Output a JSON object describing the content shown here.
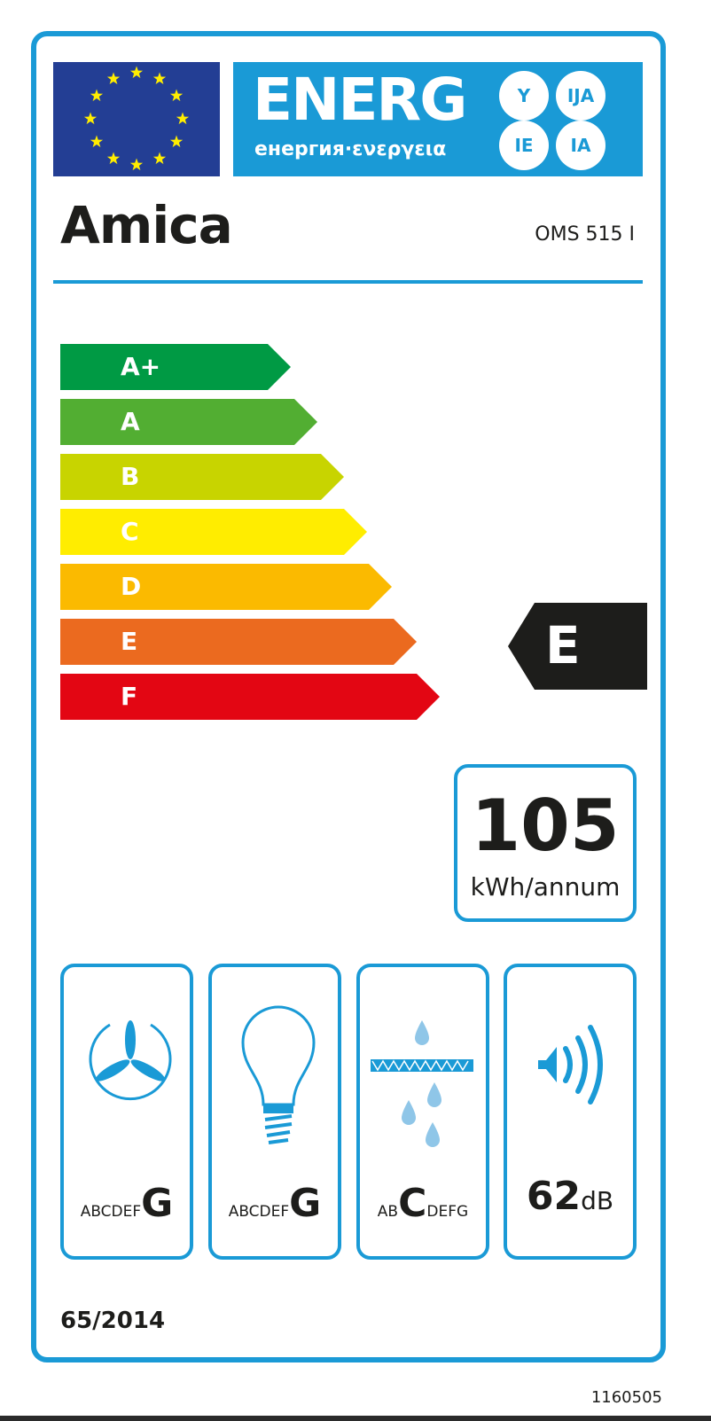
{
  "header": {
    "energy_word": "ENERG",
    "subtitle": "енергия·ενεργεια",
    "suffixes": [
      "Y",
      "IJA",
      "IE",
      "IA"
    ]
  },
  "brand": "Amica",
  "model": "OMS 515 I",
  "scale": {
    "classes": [
      {
        "label": "A+",
        "color": "#009a44"
      },
      {
        "label": "A",
        "color": "#52ae32"
      },
      {
        "label": "B",
        "color": "#c8d400"
      },
      {
        "label": "C",
        "color": "#ffed00"
      },
      {
        "label": "D",
        "color": "#fbba00"
      },
      {
        "label": "E",
        "color": "#eb6a1f"
      },
      {
        "label": "F",
        "color": "#e30613"
      }
    ]
  },
  "rating": {
    "class": "E",
    "color": "#1d1d1b"
  },
  "consumption": {
    "value": "105",
    "unit": "kWh/annum"
  },
  "icons": [
    {
      "icon": "fan-icon",
      "pre": "ABCDEF",
      "grade": "G",
      "post": ""
    },
    {
      "icon": "light-bulb-icon",
      "pre": "ABCDEF",
      "grade": "G",
      "post": ""
    },
    {
      "icon": "grease-filter-icon",
      "pre": "AB",
      "grade": "C",
      "post": "DEFG"
    },
    {
      "icon": "speaker-noise-icon",
      "value": "62",
      "unit": "dB"
    }
  ],
  "regulation": "65/2014",
  "label_code": "1160505",
  "accent_color": "#1a9ad6"
}
